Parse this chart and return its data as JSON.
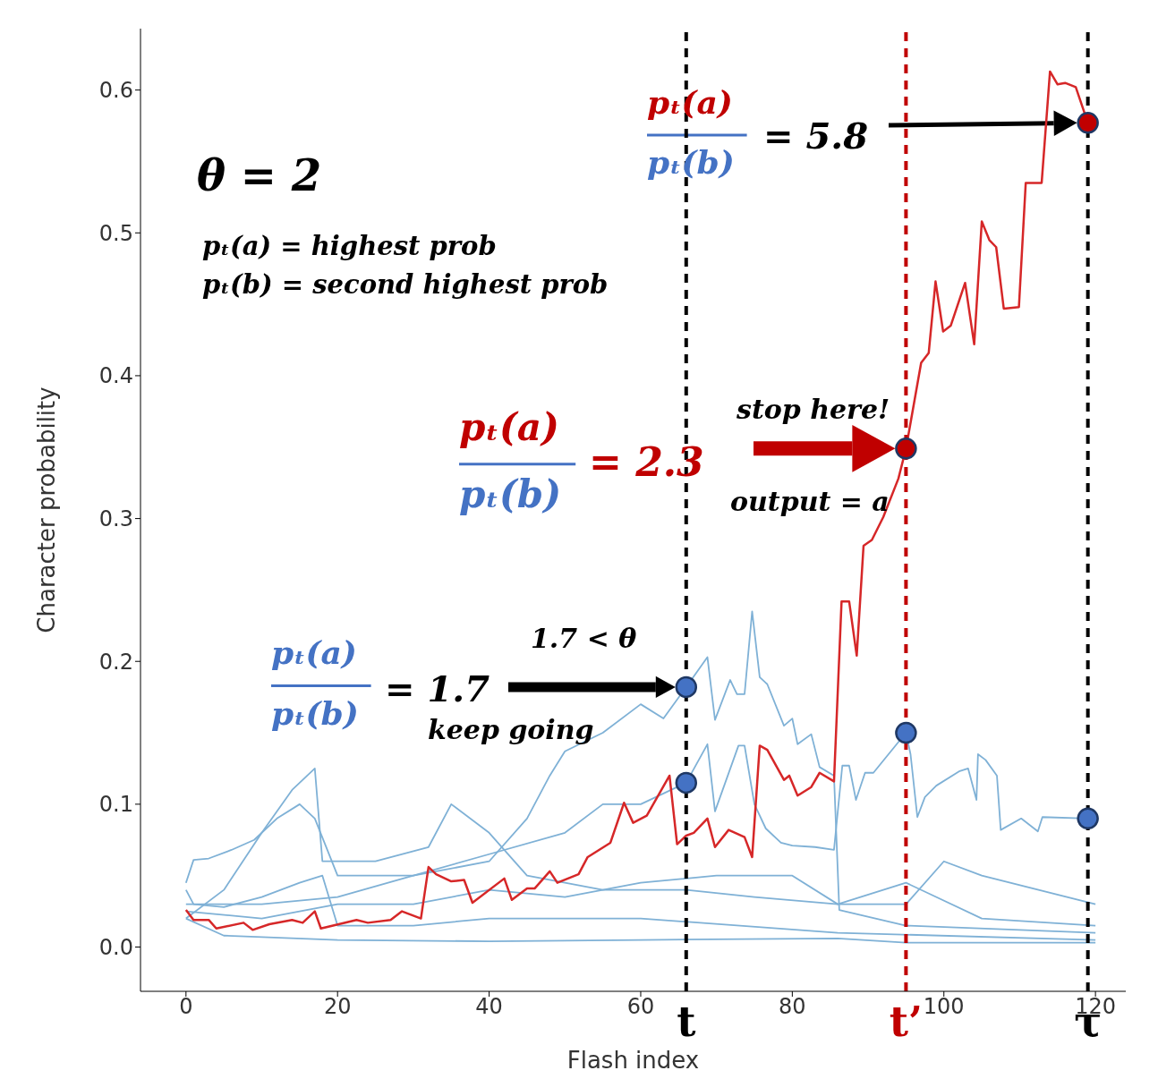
{
  "chart_data": {
    "type": "line",
    "xlabel": "Flash index",
    "ylabel": "Character probability",
    "xlim": [
      -6,
      124
    ],
    "xticks": [
      0,
      20,
      40,
      60,
      80,
      100,
      120
    ],
    "ylim": [
      -0.031,
      0.643
    ],
    "yticks": [
      {
        "value": 0,
        "label": "0.0"
      },
      0.1,
      0.2,
      0.3,
      0.4,
      0.5,
      0.6
    ],
    "series": [
      {
        "color": "#7fb1d6",
        "x": [
          0,
          10,
          20,
          30,
          40,
          45,
          48,
          50,
          55,
          60,
          63,
          66,
          68.8,
          69.8,
          71.8,
          72.7,
          73.7,
          74.7,
          75.7,
          76.7,
          78.9,
          80,
          80.7,
          82.5,
          83.6,
          85.5,
          86.2,
          95,
          120
        ],
        "values": [
          0.03,
          0.03,
          0.035,
          0.05,
          0.06,
          0.09,
          0.12,
          0.137,
          0.15,
          0.17,
          0.16,
          0.182,
          0.203,
          0.159,
          0.187,
          0.177,
          0.177,
          0.235,
          0.189,
          0.184,
          0.155,
          0.16,
          0.142,
          0.149,
          0.126,
          0.12,
          0.026,
          0.015,
          0.01
        ]
      },
      {
        "color": "#7fb1d6",
        "x": [
          0,
          1,
          3,
          6,
          9,
          12,
          15,
          17,
          20,
          30,
          40,
          50,
          55,
          60,
          64,
          66,
          68.8,
          69.8,
          72.9,
          73.7,
          75,
          76.5,
          78.5,
          80,
          83,
          85.5,
          86.6,
          87.5,
          88.4,
          89.6,
          90.7,
          95,
          95.6,
          96.5,
          97.5,
          99,
          102,
          103.2,
          104.3,
          104.5,
          105.5,
          107,
          107.5,
          110.2,
          112.4,
          113,
          119
        ],
        "values": [
          0.045,
          0.061,
          0.062,
          0.068,
          0.075,
          0.09,
          0.1,
          0.09,
          0.05,
          0.05,
          0.065,
          0.08,
          0.1,
          0.1,
          0.11,
          0.115,
          0.142,
          0.095,
          0.141,
          0.141,
          0.1,
          0.083,
          0.073,
          0.071,
          0.07,
          0.068,
          0.127,
          0.127,
          0.103,
          0.122,
          0.122,
          0.15,
          0.135,
          0.091,
          0.105,
          0.113,
          0.123,
          0.125,
          0.103,
          0.135,
          0.131,
          0.12,
          0.082,
          0.09,
          0.081,
          0.091,
          0.09
        ]
      },
      {
        "color": "#7fb1d6",
        "x": [
          0,
          5,
          10,
          14,
          17,
          18,
          25,
          32,
          35,
          40,
          45,
          55,
          66,
          75,
          86,
          95,
          100,
          105,
          120
        ],
        "values": [
          0.02,
          0.04,
          0.08,
          0.11,
          0.125,
          0.06,
          0.06,
          0.07,
          0.1,
          0.08,
          0.05,
          0.04,
          0.04,
          0.035,
          0.03,
          0.03,
          0.06,
          0.05,
          0.03
        ]
      },
      {
        "color": "#7fb1d6",
        "x": [
          0,
          1,
          5,
          10,
          15,
          18,
          20,
          30,
          40,
          60,
          86,
          120
        ],
        "values": [
          0.04,
          0.03,
          0.028,
          0.035,
          0.045,
          0.05,
          0.015,
          0.015,
          0.02,
          0.02,
          0.01,
          0.005
        ]
      },
      {
        "color": "#7fb1d6",
        "x": [
          0,
          10,
          20,
          30,
          40,
          50,
          60,
          70,
          80,
          86,
          95,
          105,
          120
        ],
        "values": [
          0.025,
          0.02,
          0.03,
          0.03,
          0.04,
          0.035,
          0.045,
          0.05,
          0.05,
          0.03,
          0.045,
          0.02,
          0.015
        ]
      },
      {
        "color": "#7fb1d6",
        "x": [
          0,
          5,
          20,
          40,
          60,
          86,
          95,
          120
        ],
        "values": [
          0.02,
          0.008,
          0.005,
          0.004,
          0.005,
          0.006,
          0.003,
          0.003
        ]
      },
      {
        "color": "#d62728",
        "x": [
          0,
          1,
          3,
          4,
          7.6,
          8.8,
          11,
          14,
          15.4,
          17,
          17.8,
          22.5,
          24,
          27,
          28.5,
          31,
          32,
          33,
          35,
          36.7,
          37.8,
          42,
          43,
          45,
          46,
          48,
          49,
          51.8,
          53,
          56,
          57.8,
          59,
          60.8,
          63.8,
          64.8,
          66,
          67,
          68.8,
          69.8,
          71.6,
          73.7,
          74.7,
          75.7,
          76.7,
          78.9,
          79.6,
          80.7,
          82.5,
          83.6,
          85.5,
          86.5,
          87.5,
          88.5,
          89.4,
          90.5,
          92,
          94,
          95,
          97,
          98,
          98.9,
          99.9,
          100.9,
          102.8,
          104,
          105,
          106,
          106.9,
          107.9,
          109.9,
          110.8,
          112.9,
          114,
          115,
          116,
          117.4,
          119
        ],
        "values": [
          0.026,
          0.019,
          0.019,
          0.013,
          0.017,
          0.012,
          0.016,
          0.019,
          0.017,
          0.025,
          0.013,
          0.019,
          0.017,
          0.019,
          0.025,
          0.02,
          0.056,
          0.051,
          0.046,
          0.047,
          0.031,
          0.048,
          0.033,
          0.041,
          0.041,
          0.053,
          0.045,
          0.051,
          0.063,
          0.073,
          0.101,
          0.087,
          0.092,
          0.12,
          0.072,
          0.078,
          0.08,
          0.09,
          0.07,
          0.082,
          0.077,
          0.063,
          0.141,
          0.138,
          0.117,
          0.12,
          0.106,
          0.112,
          0.122,
          0.116,
          0.242,
          0.242,
          0.204,
          0.281,
          0.285,
          0.301,
          0.328,
          0.349,
          0.409,
          0.416,
          0.466,
          0.431,
          0.435,
          0.465,
          0.422,
          0.508,
          0.495,
          0.49,
          0.447,
          0.448,
          0.535,
          0.535,
          0.613,
          0.604,
          0.605,
          0.602,
          0.577
        ]
      },
      {
        "type": "scatter",
        "color": "#4472c4",
        "x": [
          66,
          66,
          95,
          119
        ],
        "values": [
          0.182,
          0.115,
          0.15,
          0.09
        ]
      },
      {
        "type": "scatter",
        "color": "#c00000",
        "x": [
          95,
          119
        ],
        "values": [
          0.349,
          0.577
        ]
      }
    ],
    "ref_lines": [
      {
        "axis": "x",
        "value": 66,
        "label": "t",
        "color": "#000000",
        "line_style": "dashed"
      },
      {
        "axis": "x",
        "value": 95,
        "label": "t’",
        "color": "#c00000",
        "line_style": "dashed"
      },
      {
        "axis": "x",
        "value": 119,
        "label": "τ",
        "color": "#000000",
        "line_style": "dashed"
      }
    ],
    "annotations": [
      "θ = 2",
      "pₜ(a) = highest prob",
      "pₜ(b) = second highest prob",
      "pₜ(a)",
      "pₜ(b)",
      "= 5.8",
      "pₜ(a)",
      "pₜ(b)",
      "= 2.3",
      "stop here!",
      "output = a",
      "pₜ(a)",
      "pₜ(b)",
      "= 1.7",
      "1.7 < θ",
      "keep going"
    ]
  }
}
